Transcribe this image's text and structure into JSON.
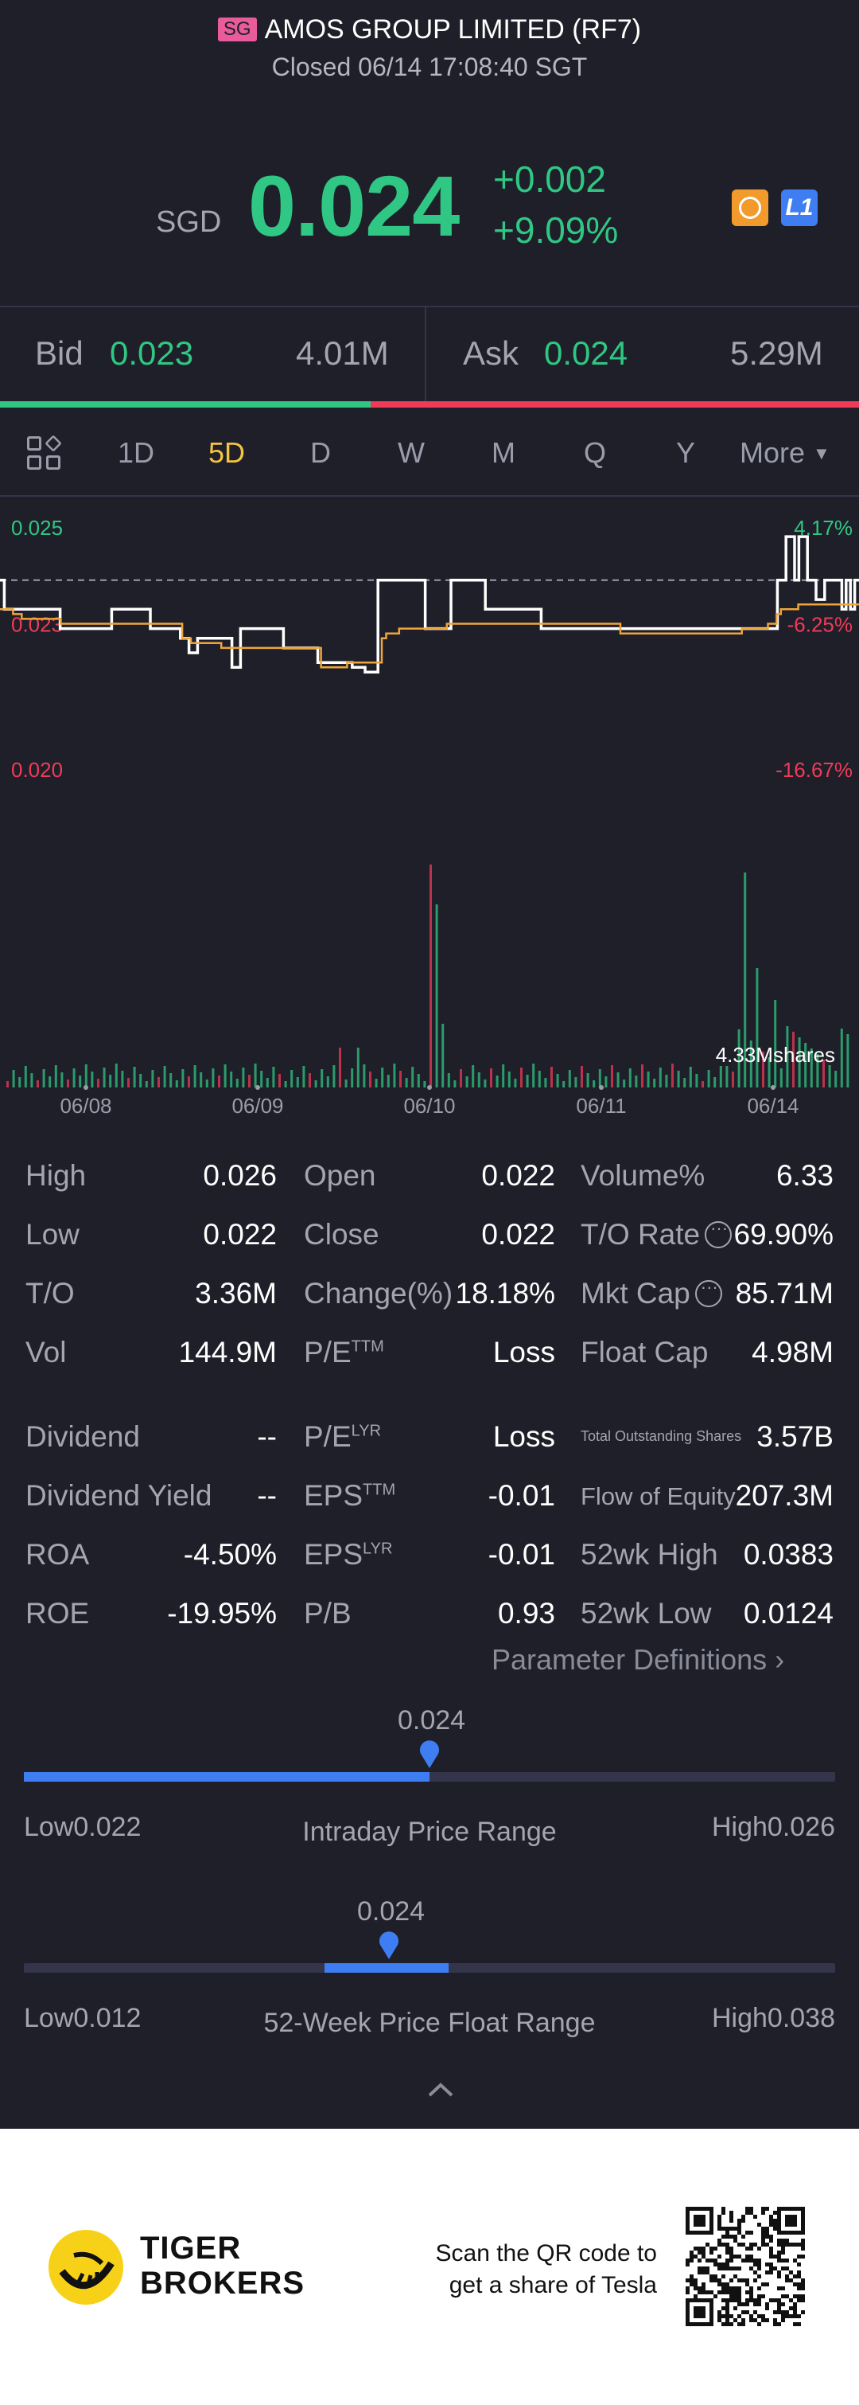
{
  "header": {
    "market_badge": "SG",
    "title": "AMOS GROUP LIMITED (RF7)",
    "status": "Closed 06/14 17:08:40 SGT"
  },
  "quote": {
    "currency": "SGD",
    "price": "0.024",
    "change": "+0.002",
    "change_pct": "+9.09%",
    "level_badge": "L1"
  },
  "bid_ask": {
    "bid_label": "Bid",
    "bid_price": "0.023",
    "bid_size": "4.01M",
    "ask_label": "Ask",
    "ask_price": "0.024",
    "ask_size": "5.29M"
  },
  "tabs": [
    {
      "label": "1D"
    },
    {
      "label": "5D"
    },
    {
      "label": "D"
    },
    {
      "label": "W"
    },
    {
      "label": "M"
    },
    {
      "label": "Q"
    },
    {
      "label": "Y"
    },
    {
      "label": "More"
    }
  ],
  "active_tab": "5D",
  "chart_data": {
    "type": "line",
    "x_labels": [
      "06/08",
      "06/09",
      "06/10",
      "06/11",
      "06/14"
    ],
    "ylim": [
      0.02,
      0.025
    ],
    "y_ticks_left": [
      "0.025",
      "0.023",
      "0.020"
    ],
    "y_ticks_right": [
      "4.17%",
      "-6.25%",
      "-16.67%"
    ],
    "prev_close": 0.024,
    "volume_label": "4.33Mshares",
    "series": [
      {
        "values": [
          0.024,
          0.0234,
          0.0234,
          0.0234,
          0.0234,
          0.0234,
          0.0234,
          0.0234,
          0.0234,
          0.0234,
          0.0234,
          0.0234,
          0.0234,
          0.0234,
          0.023,
          0.023,
          0.023,
          0.023,
          0.023,
          0.023,
          0.023,
          0.023,
          0.023,
          0.023,
          0.023,
          0.023,
          0.0234,
          0.0234,
          0.0234,
          0.0234,
          0.0234,
          0.0234,
          0.0234,
          0.0234,
          0.0234,
          0.023,
          0.023,
          0.023,
          0.023,
          0.023,
          0.023,
          0.023,
          0.0228,
          0.0228,
          0.0225,
          0.0225,
          0.0228,
          0.0228,
          0.0228,
          0.0228,
          0.0228,
          0.0228,
          0.0228,
          0.0228,
          0.0222,
          0.0222,
          0.023,
          0.023,
          0.023,
          0.023,
          0.023,
          0.023,
          0.023,
          0.023,
          0.023,
          0.023,
          0.0226,
          0.0226,
          0.0226,
          0.0226,
          0.0226,
          0.0226,
          0.0226,
          0.0226,
          0.0223,
          0.0223,
          0.0223,
          0.0223,
          0.0223,
          0.0223,
          0.0223,
          0.0223,
          0.0222,
          0.0222,
          0.0222,
          0.0221,
          0.0221,
          0.0221,
          0.024,
          0.024,
          0.024,
          0.024,
          0.024,
          0.024,
          0.024,
          0.024,
          0.024,
          0.024,
          0.024,
          0.023,
          0.023,
          0.023,
          0.023,
          0.023,
          0.023,
          0.024,
          0.024,
          0.024,
          0.024,
          0.024,
          0.024,
          0.024,
          0.024,
          0.0234,
          0.0234,
          0.0234,
          0.0234,
          0.0234,
          0.0234,
          0.0234,
          0.0234,
          0.0234,
          0.0234,
          0.0234,
          0.0234,
          0.0234,
          0.023,
          0.023,
          0.023,
          0.023,
          0.023,
          0.023,
          0.023,
          0.023,
          0.023,
          0.023,
          0.023,
          0.023,
          0.023,
          0.023,
          0.023,
          0.023,
          0.023,
          0.023,
          0.023,
          0.023,
          0.023,
          0.023,
          0.023,
          0.023,
          0.023,
          0.023,
          0.023,
          0.023,
          0.023,
          0.023,
          0.023,
          0.023,
          0.023,
          0.023,
          0.023,
          0.023,
          0.023,
          0.023,
          0.023,
          0.023,
          0.023,
          0.023,
          0.023,
          0.023,
          0.023,
          0.023,
          0.023,
          0.023,
          0.023,
          0.023,
          0.023,
          0.023,
          0.023,
          0.023,
          0.023,
          0.024,
          0.024,
          0.0249,
          0.0249,
          0.024,
          0.0249,
          0.0249,
          0.024,
          0.024,
          0.0236,
          0.0236,
          0.024,
          0.024,
          0.024,
          0.024,
          0.0234,
          0.024,
          0.0234,
          0.024,
          0.024
        ]
      },
      {
        "values": [
          0.0234,
          0.0234,
          0.0234,
          0.0233,
          0.0233,
          0.0232,
          0.0232,
          0.0232,
          0.0232,
          0.0232,
          0.0232,
          0.0232,
          0.0232,
          0.0232,
          0.0231,
          0.0231,
          0.0231,
          0.0231,
          0.0231,
          0.0231,
          0.0231,
          0.0231,
          0.0231,
          0.0231,
          0.0231,
          0.0231,
          0.0231,
          0.0231,
          0.0231,
          0.0231,
          0.0231,
          0.0231,
          0.0231,
          0.0231,
          0.0231,
          0.0231,
          0.0231,
          0.0231,
          0.0231,
          0.0231,
          0.0231,
          0.0231,
          0.0228,
          0.0228,
          0.0227,
          0.0227,
          0.0227,
          0.0227,
          0.0227,
          0.0227,
          0.0227,
          0.0226,
          0.0226,
          0.0226,
          0.0226,
          0.0226,
          0.0226,
          0.0226,
          0.0226,
          0.0226,
          0.0226,
          0.0226,
          0.0226,
          0.0226,
          0.0226,
          0.0226,
          0.0226,
          0.0226,
          0.0226,
          0.0226,
          0.0226,
          0.0226,
          0.0226,
          0.0226,
          0.0222,
          0.0222,
          0.0222,
          0.0222,
          0.0222,
          0.0222,
          0.0223,
          0.0223,
          0.0223,
          0.0223,
          0.0223,
          0.0223,
          0.0223,
          0.0223,
          0.0228,
          0.0229,
          0.0229,
          0.0229,
          0.023,
          0.023,
          0.023,
          0.023,
          0.023,
          0.023,
          0.023,
          0.023,
          0.023,
          0.023,
          0.023,
          0.0231,
          0.0231,
          0.0231,
          0.0231,
          0.0231,
          0.0231,
          0.0231,
          0.0231,
          0.0231,
          0.0231,
          0.0231,
          0.0231,
          0.0231,
          0.0231,
          0.0231,
          0.0231,
          0.0231,
          0.0231,
          0.0231,
          0.0231,
          0.0231,
          0.0231,
          0.0231,
          0.0231,
          0.0231,
          0.0231,
          0.0231,
          0.0231,
          0.0231,
          0.0231,
          0.0231,
          0.0231,
          0.0231,
          0.0231,
          0.0231,
          0.0231,
          0.0231,
          0.0231,
          0.0231,
          0.0231,
          0.0229,
          0.0229,
          0.0229,
          0.0229,
          0.0229,
          0.0229,
          0.0229,
          0.0229,
          0.0229,
          0.0229,
          0.0229,
          0.0229,
          0.0229,
          0.0229,
          0.0229,
          0.0229,
          0.0229,
          0.0229,
          0.0229,
          0.0229,
          0.0229,
          0.0229,
          0.0229,
          0.0229,
          0.0229,
          0.0229,
          0.0229,
          0.0229,
          0.023,
          0.023,
          0.023,
          0.023,
          0.023,
          0.023,
          0.0231,
          0.0231,
          0.0233,
          0.0234,
          0.0234,
          0.0234,
          0.0234,
          0.0235,
          0.0235,
          0.0235,
          0.0235,
          0.0235,
          0.0235,
          0.0235,
          0.0235,
          0.0235,
          0.0235,
          0.0235,
          0.0235,
          0.0235,
          0.0235,
          0.0235
        ]
      }
    ]
  },
  "stats": {
    "high_label": "High",
    "high": "0.026",
    "open_label": "Open",
    "open": "0.022",
    "volpct_label": "Volume%",
    "volpct": "6.33",
    "low_label": "Low",
    "low": "0.022",
    "close_label": "Close",
    "close": "0.022",
    "torate_label": "T/O Rate",
    "torate": "69.90%",
    "to_label": "T/O",
    "to": "3.36M",
    "changepct_label": "Change(%)",
    "changepct": "18.18%",
    "mktcap_label": "Mkt Cap",
    "mktcap": "85.71M",
    "vol_label": "Vol",
    "vol": "144.9M",
    "pe_ttm_label": "P/E",
    "pe_ttm_sup": "TTM",
    "pe_ttm": "Loss",
    "float_label": "Float Cap",
    "float": "4.98M",
    "div_label": "Dividend",
    "div": "--",
    "pe_lyr_label": "P/E",
    "pe_lyr_sup": "LYR",
    "pe_lyr": "Loss",
    "tos_label": "Total Outstanding Shares",
    "tos": "3.57B",
    "divy_label": "Dividend Yield",
    "divy": "--",
    "eps_ttm_label": "EPS",
    "eps_ttm_sup": "TTM",
    "eps_ttm": "-0.01",
    "foe_label": "Flow of Equity",
    "foe": "207.3M",
    "roa_label": "ROA",
    "roa": "-4.50%",
    "eps_lyr_label": "EPS",
    "eps_lyr_sup": "LYR",
    "eps_lyr": "-0.01",
    "h52_label": "52wk High",
    "h52": "0.0383",
    "roe_label": "ROE",
    "roe": "-19.95%",
    "pb_label": "P/B",
    "pb": "0.93",
    "l52_label": "52wk Low",
    "l52": "0.0124",
    "param_link": "Parameter Definitions"
  },
  "ranges": {
    "intraday": {
      "current": "0.024",
      "low": "Low0.022",
      "high": "High0.026",
      "label": "Intraday Price Range",
      "position": 0.5
    },
    "week52": {
      "current": "0.024",
      "low": "Low0.012",
      "high": "High0.038",
      "label": "52-Week Price Float Range",
      "position": 0.45
    }
  },
  "footer": {
    "brand_line1": "TIGER",
    "brand_line2": "BROKERS",
    "scan_line1": "Scan the QR code to",
    "scan_line2": "get a share of Tesla"
  },
  "colors": {
    "background": "#1f1f29",
    "up": "#2fc783",
    "down": "#ef3b58",
    "accent": "#3f7ef2",
    "active_tab": "#f5c341",
    "avg_line": "#f0a53a"
  }
}
